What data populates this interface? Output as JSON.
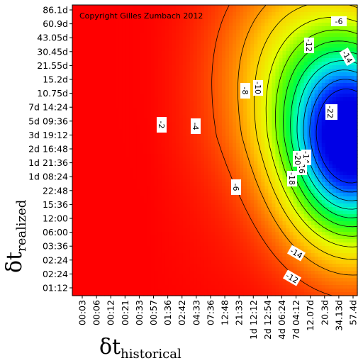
{
  "chart_data": {
    "type": "heatmap",
    "title": "",
    "copyright": "Copyright Gilles Zumbach 2012",
    "xlabel": {
      "symbol": "δt",
      "subscript": "historical"
    },
    "ylabel": {
      "symbol": "δt",
      "subscript": "realized"
    },
    "x_ticks": [
      "00:03",
      "00:06",
      "00:12",
      "00:21",
      "00:33",
      "00:57",
      "01:36",
      "02:42",
      "04:33",
      "07:36",
      "12:48",
      "21:33",
      "1d 12:12",
      "2d 12:54",
      "4d 06:24",
      "7d 04:12",
      "12.07d",
      "20.3d",
      "34.13d",
      "57.4d"
    ],
    "y_ticks": [
      "86.1d",
      "60.9d",
      "43.05d",
      "30.45d",
      "21.55d",
      "15.2d",
      "10.75d",
      "7d 14:24",
      "5d 09:36",
      "3d 19:12",
      "2d 16:48",
      "1d 21:36",
      "1d 08:24",
      "22:48",
      "15:36",
      "12:00",
      "06:00",
      "03:36",
      "02:24",
      "02:24",
      "01:12"
    ],
    "contour_levels": [
      -2,
      -4,
      -6,
      -8,
      -10,
      -12,
      -14,
      -16,
      -18,
      -20,
      -22
    ],
    "contour_labels": [
      "-2",
      "-4",
      "-6",
      "-8",
      "-10",
      "-12",
      "-14",
      "-16",
      "-18",
      "-20",
      "-22",
      "-6",
      "-12",
      "-14",
      "-12",
      "-14"
    ],
    "value_range": [
      -24,
      0
    ],
    "colormap": [
      "#ff0000",
      "#ff6a00",
      "#ffc800",
      "#e6ff00",
      "#64ff00",
      "#00ff3c",
      "#00ffc8",
      "#00aaff",
      "#0032ff",
      "#0000e6"
    ],
    "grid": false,
    "legend": "none"
  }
}
